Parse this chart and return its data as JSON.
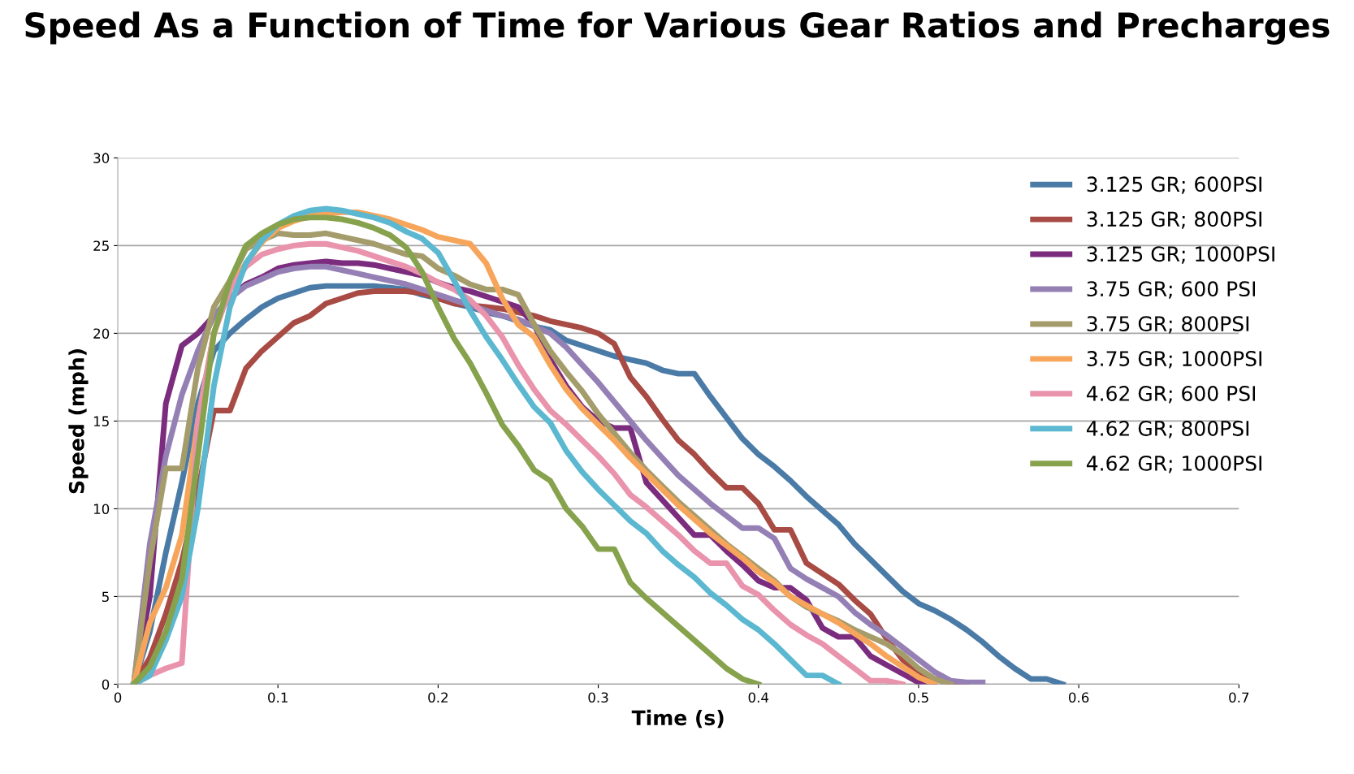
{
  "chart_data": {
    "type": "line",
    "title": "Speed As a Function of Time for Various Gear Ratios and Precharges",
    "xlabel": "Time (s)",
    "ylabel": "Speed (mph)",
    "x": [
      0.01,
      0.02,
      0.03,
      0.04,
      0.05,
      0.06,
      0.07,
      0.08,
      0.09,
      0.1,
      0.11,
      0.12,
      0.13,
      0.14,
      0.15,
      0.16,
      0.17,
      0.18,
      0.19,
      0.2,
      0.21,
      0.22,
      0.23,
      0.24,
      0.25,
      0.26,
      0.27,
      0.28,
      0.29,
      0.3,
      0.31,
      0.32,
      0.33,
      0.34,
      0.35,
      0.36,
      0.37,
      0.38,
      0.39,
      0.4,
      0.41,
      0.42,
      0.43,
      0.44,
      0.45,
      0.46,
      0.47,
      0.48,
      0.49,
      0.5,
      0.51,
      0.52,
      0.53,
      0.54,
      0.55,
      0.56,
      0.57,
      0.58,
      0.59
    ],
    "series": [
      {
        "name": "3.125 GR; 600PSI",
        "color": "#4a7ba7",
        "values": [
          0,
          3,
          7.5,
          11.5,
          16,
          19,
          20,
          20.8,
          21.5,
          22,
          22.3,
          22.6,
          22.7,
          22.7,
          22.7,
          22.7,
          22.6,
          22.5,
          22.2,
          22.0,
          21.7,
          21.5,
          21.2,
          21.0,
          20.7,
          20.4,
          20.2,
          19.6,
          19.3,
          19.0,
          18.7,
          18.5,
          18.3,
          17.9,
          17.7,
          17.7,
          16.4,
          15.2,
          14.0,
          13.1,
          12.4,
          11.6,
          10.7,
          9.9,
          9.1,
          8.0,
          7.1,
          6.2,
          5.3,
          4.6,
          4.2,
          3.7,
          3.1,
          2.4,
          1.6,
          0.9,
          0.3,
          0.3,
          0
        ]
      },
      {
        "name": "3.125 GR; 800PSI",
        "color": "#a84b45",
        "values": [
          0,
          1.5,
          4,
          7,
          11,
          15.6,
          15.6,
          18,
          19,
          19.8,
          20.6,
          21.0,
          21.7,
          22.0,
          22.3,
          22.4,
          22.4,
          22.4,
          22.3,
          22.0,
          21.7,
          21.6,
          21.5,
          21.4,
          21.2,
          21.0,
          20.7,
          20.5,
          20.3,
          20.0,
          19.4,
          17.5,
          16.4,
          15.1,
          13.9,
          13.1,
          12.1,
          11.2,
          11.2,
          10.3,
          8.8,
          8.8,
          6.9,
          6.3,
          5.7,
          4.8,
          4.0,
          2.6,
          1.4,
          0.7,
          0.3,
          0.1,
          0,
          null,
          null,
          null,
          null,
          null,
          null
        ]
      },
      {
        "name": "3.125 GR; 1000PSI",
        "color": "#7b2c7e",
        "values": [
          0,
          5,
          16,
          19.3,
          20,
          21,
          22,
          22.8,
          23.2,
          23.7,
          23.9,
          24.0,
          24.1,
          24.0,
          24.0,
          23.9,
          23.7,
          23.5,
          23.3,
          22.9,
          22.6,
          22.4,
          22.1,
          21.8,
          21.5,
          20.5,
          18.5,
          17.0,
          15.8,
          15.0,
          14.6,
          14.6,
          11.5,
          10.5,
          9.5,
          8.5,
          8.5,
          7.6,
          6.8,
          5.9,
          5.5,
          5.5,
          4.8,
          3.2,
          2.7,
          2.7,
          1.6,
          1.1,
          0.6,
          0.1,
          0,
          null,
          null,
          null,
          null,
          null,
          null,
          null,
          null
        ]
      },
      {
        "name": "3.75 GR; 600 PSI",
        "color": "#9580b5",
        "values": [
          0,
          8,
          13,
          16.5,
          19,
          21,
          22,
          22.7,
          23.1,
          23.5,
          23.7,
          23.8,
          23.8,
          23.6,
          23.4,
          23.2,
          23.0,
          22.8,
          22.5,
          22.2,
          21.9,
          21.6,
          21.3,
          21.0,
          20.8,
          20.4,
          20.0,
          19.2,
          18.2,
          17.2,
          16.1,
          15.0,
          13.9,
          12.9,
          11.9,
          11.1,
          10.3,
          9.6,
          8.9,
          8.9,
          8.3,
          6.6,
          6.0,
          5.5,
          5.0,
          4.1,
          3.4,
          2.8,
          2.1,
          1.4,
          0.7,
          0.2,
          0.1,
          0.1,
          null,
          null,
          null,
          null,
          null
        ]
      },
      {
        "name": "3.75 GR; 800PSI",
        "color": "#a59c6c",
        "values": [
          0,
          7,
          12.3,
          12.3,
          18,
          21.5,
          23,
          24.8,
          25.3,
          25.7,
          25.6,
          25.6,
          25.7,
          25.5,
          25.3,
          25.1,
          24.8,
          24.5,
          24.4,
          23.7,
          23.3,
          22.8,
          22.5,
          22.5,
          22.2,
          20.5,
          19.0,
          17.8,
          16.7,
          15.4,
          14.3,
          13.2,
          12.2,
          11.3,
          10.4,
          9.6,
          8.8,
          8.0,
          7.3,
          6.6,
          5.9,
          5.0,
          4.4,
          4.0,
          3.6,
          3.1,
          2.7,
          2.3,
          1.7,
          0.9,
          0.3,
          0,
          null,
          null,
          null,
          null,
          null,
          null,
          null
        ]
      },
      {
        "name": "3.75 GR; 1000PSI",
        "color": "#f6a55a",
        "values": [
          0,
          3.5,
          5.5,
          8.5,
          15,
          20,
          22.5,
          24,
          25.2,
          26.0,
          26.4,
          26.7,
          26.8,
          26.9,
          26.9,
          26.7,
          26.5,
          26.2,
          25.9,
          25.5,
          25.3,
          25.1,
          24.0,
          22.0,
          20.5,
          19.8,
          18.2,
          16.8,
          15.7,
          14.8,
          13.9,
          12.9,
          12.0,
          11.1,
          10.2,
          9.4,
          8.6,
          7.9,
          7.2,
          6.4,
          5.8,
          5.0,
          4.5,
          4.0,
          3.5,
          2.9,
          2.3,
          1.6,
          1.0,
          0.4,
          0,
          null,
          null,
          null,
          null,
          null,
          null,
          null,
          null
        ]
      },
      {
        "name": "4.62 GR; 600 PSI",
        "color": "#e993ad",
        "values": [
          0,
          0.5,
          0.9,
          1.2,
          15,
          20,
          22.5,
          23.8,
          24.5,
          24.8,
          25.0,
          25.1,
          25.1,
          24.9,
          24.7,
          24.4,
          24.1,
          23.8,
          23.4,
          22.9,
          22.5,
          21.9,
          21.0,
          19.8,
          18.2,
          16.8,
          15.6,
          14.8,
          13.9,
          13.0,
          12.0,
          10.8,
          10.1,
          9.3,
          8.5,
          7.6,
          6.9,
          6.9,
          5.6,
          5.1,
          4.2,
          3.4,
          2.8,
          2.3,
          1.6,
          0.9,
          0.2,
          0.2,
          0,
          null,
          null,
          null,
          null,
          null,
          null,
          null,
          null,
          null,
          null
        ]
      },
      {
        "name": "4.62 GR; 800PSI",
        "color": "#5bb8d0",
        "values": [
          0,
          0.5,
          2.5,
          5,
          10,
          17,
          21.5,
          24,
          25.3,
          26.2,
          26.7,
          27.0,
          27.1,
          27.0,
          26.8,
          26.6,
          26.3,
          25.8,
          25.4,
          24.6,
          23.0,
          21.3,
          19.8,
          18.5,
          17.1,
          15.8,
          14.9,
          13.3,
          12.1,
          11.1,
          10.2,
          9.3,
          8.6,
          7.6,
          6.8,
          6.1,
          5.2,
          4.5,
          3.7,
          3.1,
          2.3,
          1.4,
          0.5,
          0.5,
          0,
          null,
          null,
          null,
          null,
          null,
          null,
          null,
          null,
          null,
          null,
          null,
          null,
          null,
          null
        ]
      },
      {
        "name": "4.62 GR; 1000PSI",
        "color": "#86a24c",
        "values": [
          0,
          1,
          3,
          6,
          13,
          20,
          23,
          25,
          25.7,
          26.2,
          26.5,
          26.6,
          26.6,
          26.5,
          26.3,
          26.0,
          25.6,
          24.9,
          23.5,
          21.5,
          19.7,
          18.3,
          16.6,
          14.8,
          13.6,
          12.2,
          11.6,
          10.0,
          9.0,
          7.7,
          7.7,
          5.8,
          4.9,
          4.1,
          3.3,
          2.5,
          1.7,
          0.9,
          0.3,
          0,
          null,
          null,
          null,
          null,
          null,
          null,
          null,
          null,
          null,
          null,
          null,
          null,
          null,
          null,
          null,
          null,
          null,
          null,
          null
        ]
      }
    ],
    "xlim": [
      0,
      0.7
    ],
    "xticks": [
      0,
      0.1,
      0.2,
      0.3,
      0.4,
      0.5,
      0.6,
      0.7
    ],
    "ylim": [
      0,
      30
    ],
    "yticks": [
      0,
      5,
      10,
      15,
      20,
      25,
      30
    ],
    "grid": "y",
    "legend": "top right",
    "marker": "none",
    "line_style": "solid"
  }
}
